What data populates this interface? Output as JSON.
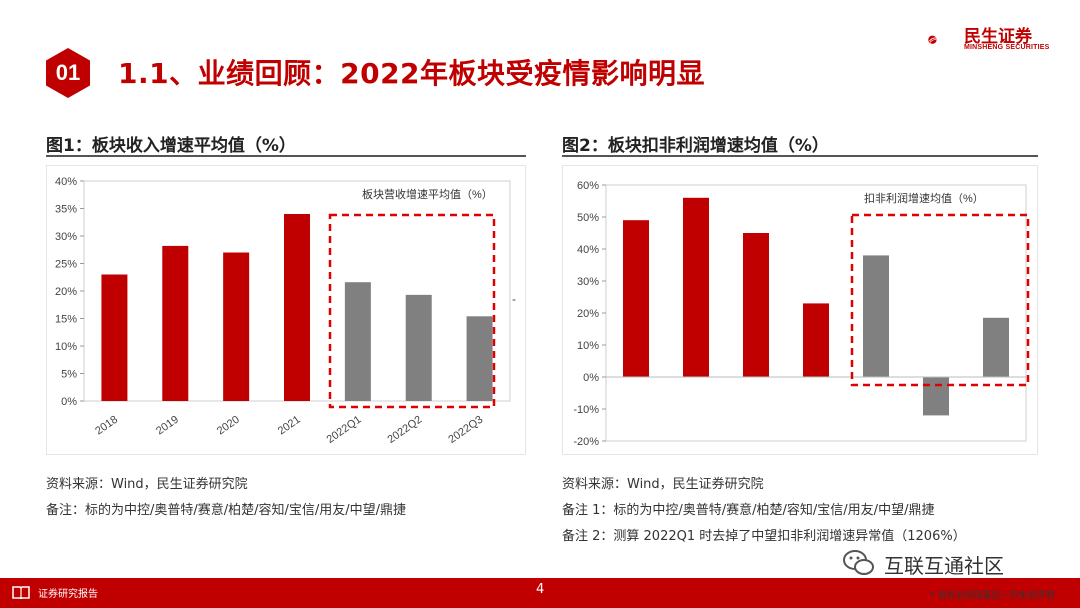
{
  "header": {
    "section_number": "01",
    "title": "1.1、业绩回顾：2022年板块受疫情影响明显",
    "logo_cn": "民生证券",
    "logo_en": "MINSHENG SECURITIES"
  },
  "figure1": {
    "title": "图1：板块收入增速平均值（%）",
    "source": "资料来源：Wind，民生证券研究院",
    "remark": "备注：标的为中控/奥普特/赛意/柏楚/容知/宝信/用友/中望/鼎捷"
  },
  "figure2": {
    "title": "图2：板块扣非利润增速均值（%）",
    "source": "资料来源：Wind，民生证券研究院",
    "remark1": "备注 1：标的为中控/奥普特/赛意/柏楚/容知/宝信/用友/中望/鼎捷",
    "remark2": "备注 2：测算 2022Q1 时去掉了中望扣非利润增速异常值（1206%）"
  },
  "footer": {
    "left": "证券研究报告",
    "page": "4",
    "right": "* 请务必阅读最后一页免责声明",
    "watermark": "互联互通社区"
  },
  "colors": {
    "brand_red": "#c00000",
    "bar_red": "#c00000",
    "bar_gray": "#808080"
  },
  "chart_data": [
    {
      "type": "bar",
      "title": "板块营收增速平均值（%）",
      "categories": [
        "2018",
        "2019",
        "2020",
        "2021",
        "2022Q1",
        "2022Q2",
        "2022Q3"
      ],
      "values": [
        23,
        28.2,
        27,
        34,
        21.6,
        19.3,
        15.4
      ],
      "highlight_from_index": 4,
      "ylim": [
        0,
        40
      ],
      "yticks": [
        "0%",
        "5%",
        "10%",
        "15%",
        "20%",
        "25%",
        "30%",
        "35%",
        "40%"
      ],
      "ytick_values": [
        0,
        5,
        10,
        15,
        20,
        25,
        30,
        35,
        40
      ],
      "xlabel": "",
      "ylabel": "",
      "stray_mark": "-"
    },
    {
      "type": "bar",
      "title": "扣非利润增速均值（%）",
      "categories": [
        "2018",
        "2019",
        "2020",
        "2021",
        "2022Q1",
        "2022Q2",
        "2022Q3"
      ],
      "values": [
        49,
        56,
        45,
        23,
        38,
        -12,
        18.5
      ],
      "highlight_from_index": 4,
      "ylim": [
        -20,
        60
      ],
      "yticks": [
        "-20%",
        "-10%",
        "0%",
        "10%",
        "20%",
        "30%",
        "40%",
        "50%",
        "60%"
      ],
      "ytick_values": [
        -20,
        -10,
        0,
        10,
        20,
        30,
        40,
        50,
        60
      ],
      "xlabel": "",
      "ylabel": ""
    }
  ]
}
